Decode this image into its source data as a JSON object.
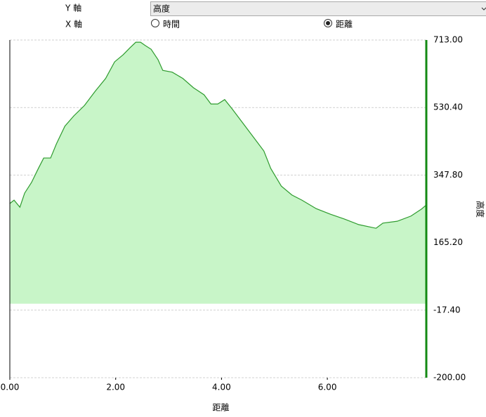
{
  "controls": {
    "y_axis_label": "Y 軸",
    "y_axis_select": "高度",
    "x_axis_label": "X 軸",
    "x_axis_options": [
      {
        "label": "時間",
        "selected": false
      },
      {
        "label": "距離",
        "selected": true
      }
    ]
  },
  "chart_data": {
    "type": "area",
    "xlabel": "距離",
    "ylabel": "高度",
    "x": [
      0,
      0.08,
      0.19,
      0.28,
      0.41,
      0.54,
      0.64,
      0.77,
      0.88,
      1.04,
      1.21,
      1.41,
      1.61,
      1.81,
      1.98,
      2.14,
      2.27,
      2.38,
      2.47,
      2.56,
      2.67,
      2.8,
      2.89,
      3.07,
      3.27,
      3.47,
      3.67,
      3.8,
      3.93,
      4.06,
      4.2,
      4.4,
      4.6,
      4.8,
      4.93,
      5.13,
      5.33,
      5.52,
      5.79,
      6.06,
      6.32,
      6.59,
      6.92,
      7.05,
      7.32,
      7.58,
      7.78,
      7.87
    ],
    "series": [
      {
        "name": "高度",
        "color": "#2e9b2e",
        "fill": "#c8f5c8",
        "values": [
          271,
          280,
          261,
          299,
          328,
          366,
          394,
          394,
          432,
          480,
          508,
          536,
          574,
          609,
          654,
          673,
          692,
          707,
          707,
          698,
          688,
          660,
          631,
          626,
          609,
          584,
          565,
          540,
          540,
          552,
          527,
          489,
          451,
          413,
          366,
          318,
          294,
          280,
          257,
          242,
          229,
          214,
          204,
          218,
          223,
          237,
          256,
          267
        ]
      }
    ],
    "xlim": [
      0,
      7.87
    ],
    "xticks": [
      {
        "value": 0,
        "label": "0.00"
      },
      {
        "value": 2,
        "label": "2.00"
      },
      {
        "value": 4,
        "label": "4.00"
      },
      {
        "value": 6,
        "label": "6.00"
      }
    ],
    "ylim": [
      -200,
      713
    ],
    "yticks": [
      {
        "value": 713,
        "label": "713.00"
      },
      {
        "value": 530.4,
        "label": "530.40"
      },
      {
        "value": 347.8,
        "label": "347.80"
      },
      {
        "value": 165.2,
        "label": "165.20"
      },
      {
        "value": -17.4,
        "label": "-17.40"
      },
      {
        "value": -200,
        "label": "-200.00"
      }
    ],
    "grid": true,
    "axis_color": "#138a13"
  }
}
